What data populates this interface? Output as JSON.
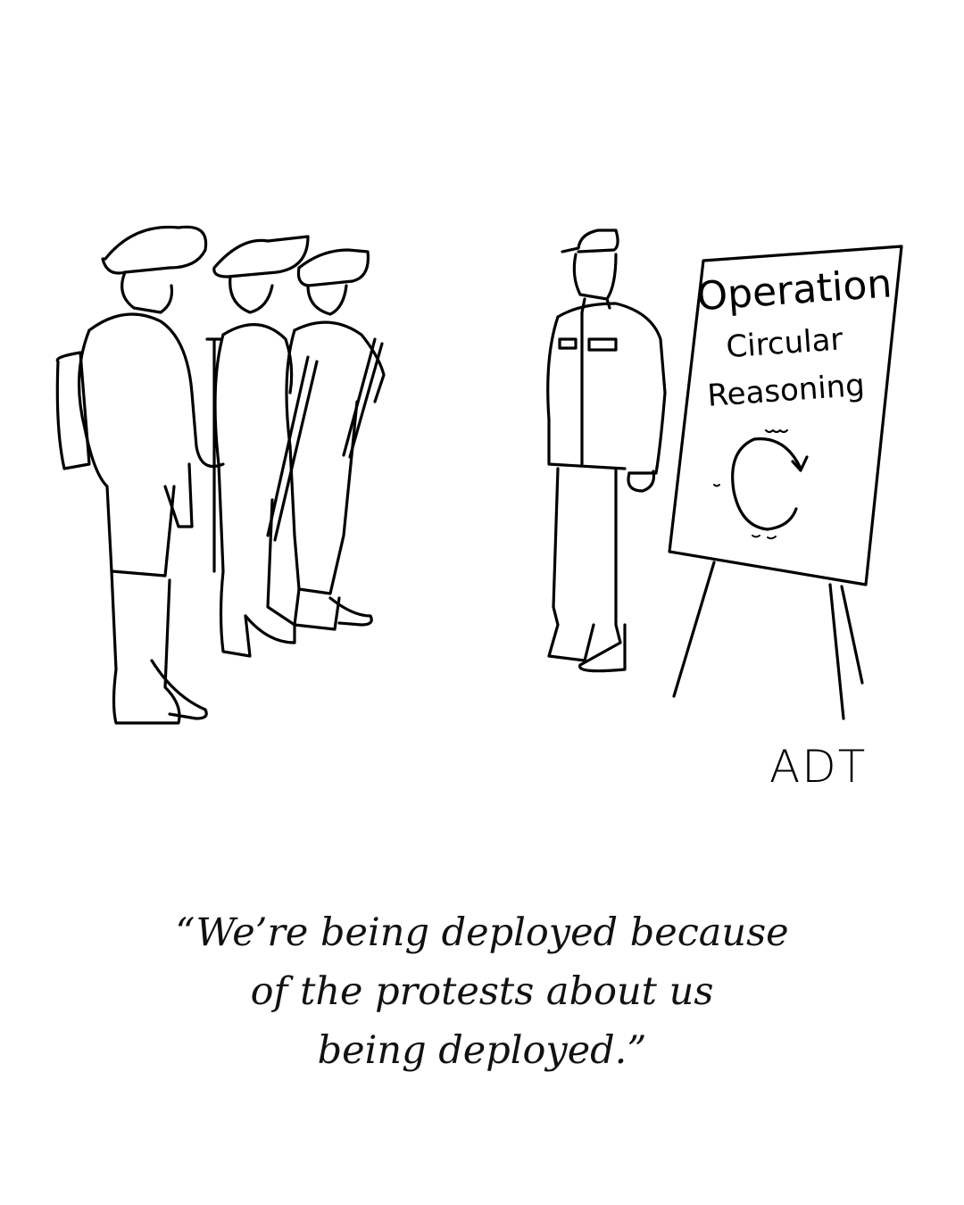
{
  "sign": {
    "line1": "Operation",
    "line2": "Circular",
    "line3": "Reasoning"
  },
  "signature": "ADT",
  "caption": {
    "line1": "“We’re being deployed because",
    "line2": "of the protests about us",
    "line3": "being deployed.”"
  }
}
